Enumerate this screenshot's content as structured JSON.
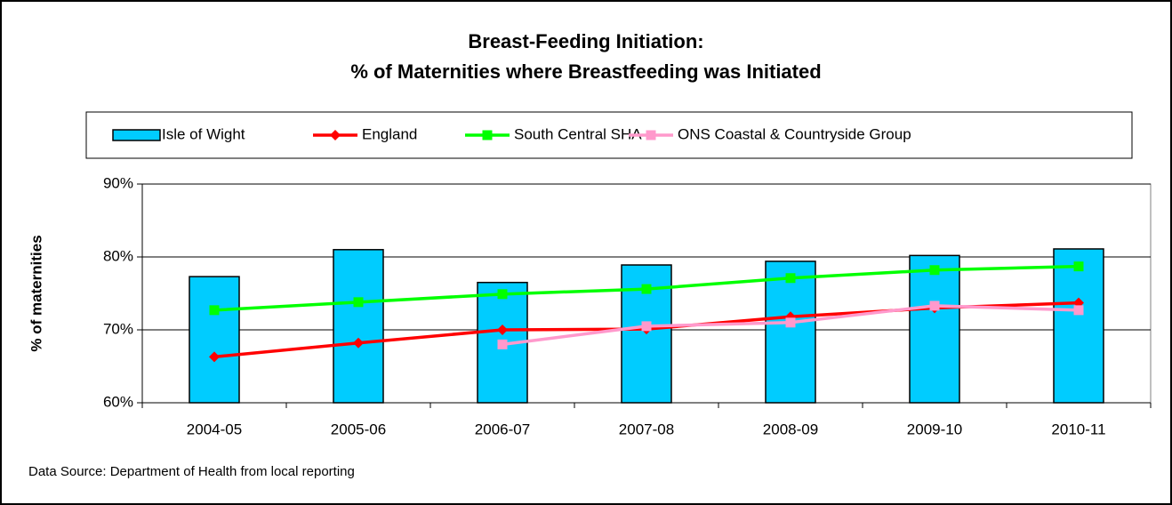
{
  "chart_data": {
    "type": "bar_line",
    "title": [
      "Breast-Feeding Initiation:",
      "% of Maternities where Breastfeeding was Initiated"
    ],
    "y_label": "% of maternities",
    "source": "Data Source: Department of Health from local reporting",
    "categories": [
      "2004-05",
      "2005-06",
      "2006-07",
      "2007-08",
      "2008-09",
      "2009-10",
      "2010-11"
    ],
    "series": [
      {
        "name": "Isle of Wight",
        "type": "bar",
        "color": "#00ccff",
        "values": [
          77.3,
          81.0,
          76.5,
          78.9,
          79.4,
          80.2,
          81.1
        ]
      },
      {
        "name": "England",
        "type": "line",
        "marker": "diamond",
        "color": "#ff0000",
        "values": [
          66.3,
          68.2,
          70.0,
          70.1,
          71.8,
          73.0,
          73.7
        ]
      },
      {
        "name": "South Central SHA",
        "type": "line",
        "marker": "square",
        "color": "#00ff00",
        "values": [
          72.7,
          73.8,
          74.9,
          75.6,
          77.1,
          78.2,
          78.7
        ]
      },
      {
        "name": "ONS Coastal & Countryside Group",
        "type": "line",
        "marker": "square",
        "color": "#ff99cc",
        "values": [
          null,
          null,
          68.0,
          70.5,
          71.0,
          73.3,
          72.7
        ]
      }
    ],
    "ylim": [
      60,
      90
    ],
    "yticks": [
      {
        "value": 60,
        "label": "60%"
      },
      {
        "value": 70,
        "label": "70%"
      },
      {
        "value": 80,
        "label": "80%"
      },
      {
        "value": 90,
        "label": "90%"
      }
    ],
    "grid": true,
    "legend": "top"
  }
}
